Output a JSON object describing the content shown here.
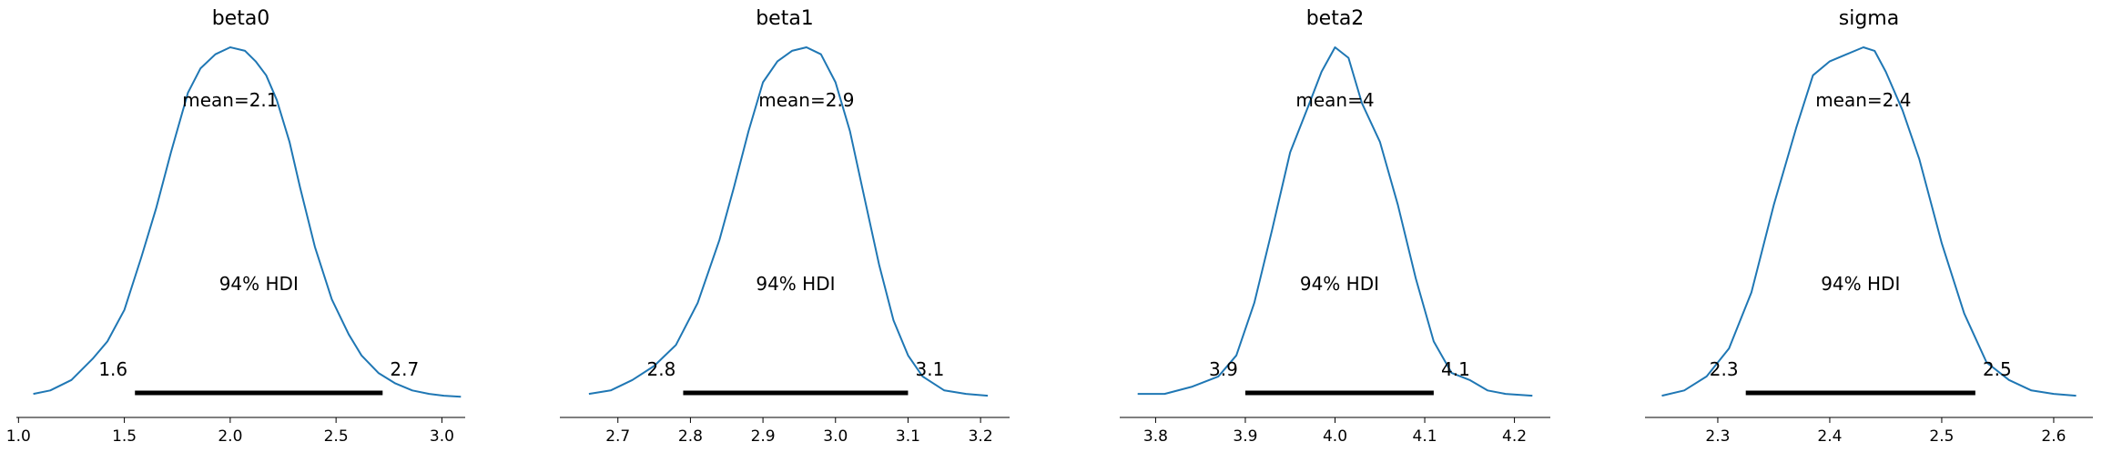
{
  "chart_data": [
    {
      "type": "area",
      "title": "beta0",
      "mean_label": "mean=2.1",
      "hdi_label": "94% HDI",
      "hdi": [
        1.55,
        2.72
      ],
      "hdi_low_label": "1.6",
      "hdi_high_label": "2.7",
      "xlim": [
        0.99,
        3.11
      ],
      "ticks": [
        1.0,
        1.5,
        2.0,
        2.5,
        3.0
      ],
      "tick_labels": [
        "1.0",
        "1.5",
        "2.0",
        "2.5",
        "3.0"
      ],
      "x": [
        1.07,
        1.15,
        1.25,
        1.35,
        1.42,
        1.5,
        1.58,
        1.65,
        1.72,
        1.8,
        1.86,
        1.93,
        2.0,
        2.07,
        2.12,
        2.17,
        2.22,
        2.28,
        2.33,
        2.4,
        2.48,
        2.56,
        2.62,
        2.7,
        2.78,
        2.86,
        2.94,
        3.01,
        3.09
      ],
      "y": [
        0.01,
        0.02,
        0.05,
        0.11,
        0.16,
        0.25,
        0.4,
        0.54,
        0.7,
        0.87,
        0.94,
        0.98,
        1.0,
        0.99,
        0.96,
        0.92,
        0.85,
        0.73,
        0.6,
        0.43,
        0.28,
        0.18,
        0.12,
        0.07,
        0.04,
        0.02,
        0.01,
        0.005,
        0.002
      ]
    },
    {
      "type": "area",
      "title": "beta1",
      "mean_label": "mean=2.9",
      "hdi_label": "94% HDI",
      "hdi": [
        2.79,
        3.1
      ],
      "hdi_low_label": "2.8",
      "hdi_high_label": "3.1",
      "xlim": [
        2.62,
        3.24
      ],
      "ticks": [
        2.7,
        2.8,
        2.9,
        3.0,
        3.1,
        3.2
      ],
      "tick_labels": [
        "2.7",
        "2.8",
        "2.9",
        "3.0",
        "3.1",
        "3.2"
      ],
      "x": [
        2.66,
        2.69,
        2.72,
        2.75,
        2.78,
        2.81,
        2.84,
        2.86,
        2.88,
        2.9,
        2.92,
        2.94,
        2.96,
        2.98,
        3.0,
        3.02,
        3.04,
        3.06,
        3.08,
        3.1,
        3.12,
        3.15,
        3.18,
        3.21
      ],
      "y": [
        0.01,
        0.02,
        0.05,
        0.09,
        0.15,
        0.27,
        0.45,
        0.6,
        0.76,
        0.9,
        0.96,
        0.99,
        1.0,
        0.98,
        0.9,
        0.76,
        0.57,
        0.38,
        0.22,
        0.12,
        0.06,
        0.02,
        0.01,
        0.005
      ]
    },
    {
      "type": "area",
      "title": "beta2",
      "mean_label": "mean=4",
      "hdi_label": "94% HDI",
      "hdi": [
        3.9,
        4.11
      ],
      "hdi_low_label": "3.9",
      "hdi_high_label": "4.1",
      "xlim": [
        3.76,
        4.24
      ],
      "ticks": [
        3.8,
        3.9,
        4.0,
        4.1,
        4.2
      ],
      "tick_labels": [
        "3.8",
        "3.9",
        "4.0",
        "4.1",
        "4.2"
      ],
      "x": [
        3.78,
        3.81,
        3.84,
        3.87,
        3.89,
        3.91,
        3.93,
        3.95,
        3.97,
        3.985,
        4.0,
        4.015,
        4.03,
        4.05,
        4.07,
        4.09,
        4.11,
        4.13,
        4.15,
        4.17,
        4.19,
        4.22
      ],
      "y": [
        0.01,
        0.01,
        0.03,
        0.06,
        0.12,
        0.27,
        0.48,
        0.7,
        0.83,
        0.93,
        1.0,
        0.97,
        0.84,
        0.73,
        0.55,
        0.34,
        0.16,
        0.07,
        0.05,
        0.02,
        0.01,
        0.005
      ]
    },
    {
      "type": "area",
      "title": "sigma",
      "mean_label": "mean=2.4",
      "hdi_label": "94% HDI",
      "hdi": [
        2.325,
        2.53
      ],
      "hdi_low_label": "2.3",
      "hdi_high_label": "2.5",
      "xlim": [
        2.235,
        2.635
      ],
      "ticks": [
        2.3,
        2.4,
        2.5,
        2.6
      ],
      "tick_labels": [
        "2.3",
        "2.4",
        "2.5",
        "2.6"
      ],
      "x": [
        2.25,
        2.27,
        2.29,
        2.31,
        2.33,
        2.35,
        2.37,
        2.385,
        2.4,
        2.415,
        2.43,
        2.44,
        2.45,
        2.465,
        2.48,
        2.5,
        2.52,
        2.54,
        2.56,
        2.58,
        2.6,
        2.62
      ],
      "y": [
        0.005,
        0.02,
        0.06,
        0.14,
        0.3,
        0.55,
        0.77,
        0.92,
        0.96,
        0.98,
        1.0,
        0.99,
        0.93,
        0.82,
        0.68,
        0.44,
        0.24,
        0.1,
        0.05,
        0.02,
        0.01,
        0.005
      ]
    }
  ]
}
